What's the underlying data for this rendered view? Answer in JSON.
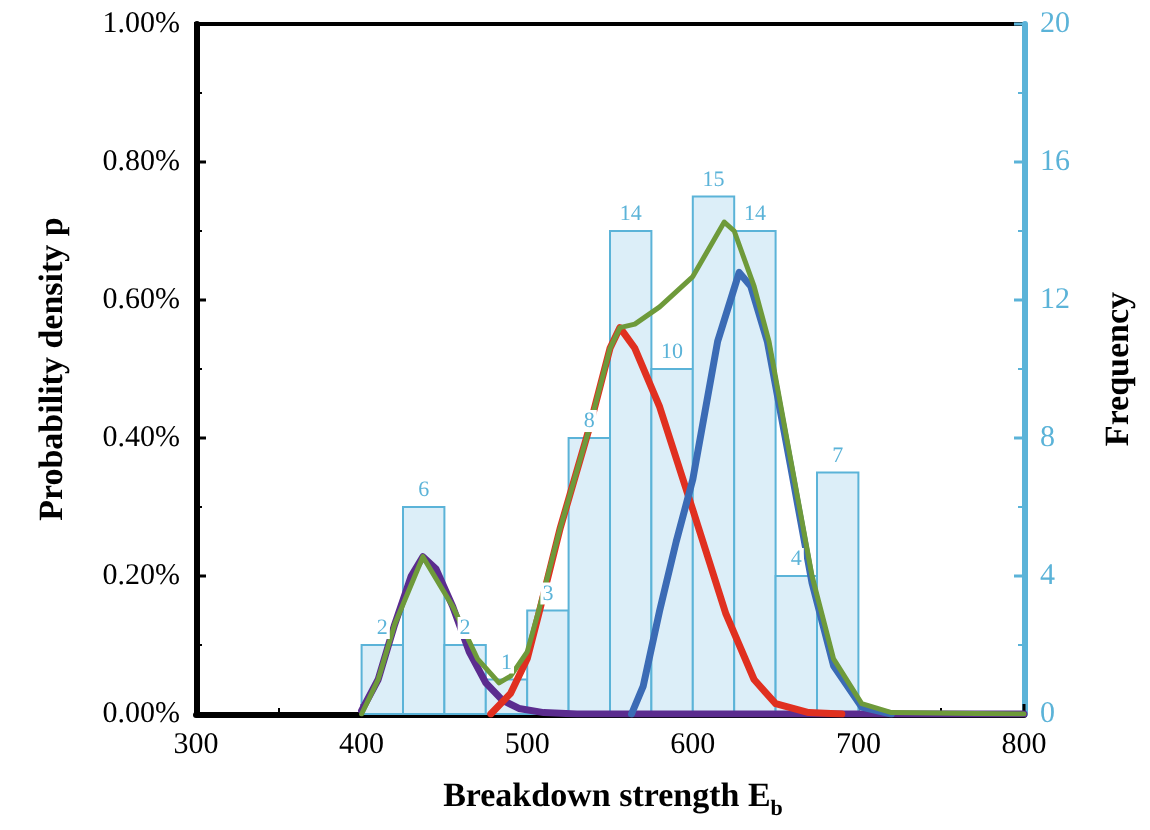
{
  "chart_data": {
    "type": "histogram",
    "xlabel": "Breakdown strength E$_{b}$",
    "ylabel": "Probability density p",
    "y2label": "Frequency",
    "xlim": [
      300,
      800
    ],
    "xticks": [
      300,
      400,
      500,
      600,
      700,
      800
    ],
    "ylim": [
      0,
      1
    ],
    "yticks": [
      {
        "value": 0,
        "label": "0.00%"
      },
      {
        "value": 0.2,
        "label": "0.20%"
      },
      {
        "value": 0.4,
        "label": "0.40%"
      },
      {
        "value": 0.6,
        "label": "0.60%"
      },
      {
        "value": 0.8,
        "label": "0.80%"
      },
      {
        "value": 1,
        "label": "1.00%"
      }
    ],
    "y2lim": [
      0,
      20
    ],
    "y2ticks": [
      0,
      4,
      8,
      12,
      16,
      20
    ],
    "grid": false,
    "series": [
      {
        "axis": "y2",
        "color": "#5bb3d8",
        "bins": [
          400,
          425,
          450,
          475,
          500,
          525,
          550,
          575,
          600,
          625,
          650,
          675,
          700
        ],
        "values": [
          2,
          6,
          2,
          1,
          3,
          8,
          14,
          10,
          15,
          14,
          4,
          7
        ],
        "value_labels": [
          "2",
          "6",
          "2",
          "1",
          "3",
          "8",
          "14",
          "10",
          "15",
          "14",
          "4",
          "7"
        ]
      },
      {
        "type": "line",
        "color": "#5b2c8f",
        "x": [
          400,
          410,
          420,
          430,
          437,
          445,
          455,
          465,
          475,
          485,
          495,
          510,
          530,
          560,
          800
        ],
        "values": [
          0.005,
          0.05,
          0.13,
          0.2,
          0.228,
          0.21,
          0.156,
          0.09,
          0.045,
          0.02,
          0.008,
          0.002,
          0,
          0,
          0
        ]
      },
      {
        "type": "line",
        "color": "#e03020",
        "x": [
          478,
          490,
          500,
          507,
          520,
          537,
          550,
          556,
          565,
          580,
          600,
          620,
          637,
          650,
          670,
          690
        ],
        "values": [
          0,
          0.03,
          0.08,
          0.145,
          0.27,
          0.41,
          0.53,
          0.56,
          0.53,
          0.445,
          0.296,
          0.145,
          0.05,
          0.015,
          0.002,
          0
        ]
      },
      {
        "type": "line",
        "color": "#3b6bb5",
        "x": [
          563,
          570,
          580,
          590,
          600,
          615,
          628,
          635,
          645,
          659,
          672,
          685,
          702,
          720
        ],
        "values": [
          0,
          0.04,
          0.15,
          0.25,
          0.34,
          0.54,
          0.64,
          0.62,
          0.54,
          0.36,
          0.19,
          0.07,
          0.01,
          0
        ]
      },
      {
        "type": "line",
        "color": "#6e9a3a",
        "x": [
          400,
          410,
          420,
          437,
          455,
          470,
          483,
          490,
          500,
          507,
          520,
          537,
          550,
          556,
          565,
          580,
          600,
          619,
          625,
          637,
          646,
          659,
          672,
          685,
          702,
          720,
          800
        ],
        "values": [
          0,
          0.05,
          0.13,
          0.228,
          0.156,
          0.08,
          0.045,
          0.055,
          0.09,
          0.15,
          0.27,
          0.41,
          0.53,
          0.56,
          0.565,
          0.59,
          0.634,
          0.713,
          0.7,
          0.62,
          0.54,
          0.37,
          0.2,
          0.08,
          0.015,
          0.002,
          0
        ]
      }
    ]
  }
}
